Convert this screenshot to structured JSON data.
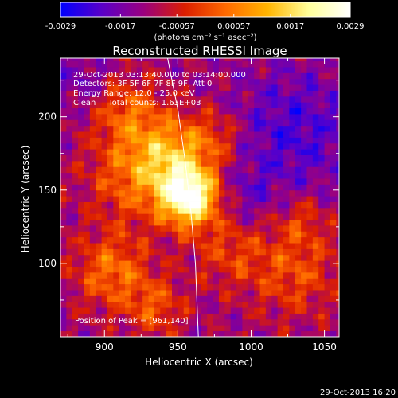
{
  "chart_data": {
    "type": "heatmap",
    "title": "Reconstructed RHESSI Image",
    "xlabel": "Heliocentric X (arcsec)",
    "ylabel": "Heliocentric Y (arcsec)",
    "xlim": [
      870,
      1060
    ],
    "ylim": [
      50,
      240
    ],
    "x_ticks": [
      900,
      950,
      1000,
      1050
    ],
    "y_ticks": [
      100,
      150,
      200
    ],
    "x_tick_labels": [
      "900",
      "950",
      "1000",
      "1050"
    ],
    "y_tick_labels": [
      "100",
      "150",
      "200"
    ],
    "colorbar": {
      "min": -0.0029,
      "max": 0.0029,
      "tick_values": [
        -0.0029,
        -0.0017,
        -0.00057,
        0.00057,
        0.0017,
        0.0029
      ],
      "tick_labels": [
        "-0.0029",
        "-0.0017",
        "-0.00057",
        "0.00057",
        "0.0017",
        "0.0029"
      ],
      "label": "(photons cm⁻² s⁻¹ asec⁻²)",
      "colors": [
        "#0000ff",
        "#5a00c8",
        "#9a0080",
        "#dc1e00",
        "#ff6a00",
        "#ffb400",
        "#ffff9a",
        "#ffffff"
      ],
      "position": "top"
    },
    "annotations": [
      "29-Oct-2013 03:13:40.000 to 03:14:00.000",
      "Detectors: 3F 5F 6F 7F 8F 9F, Att 0",
      "Energy Range: 12.0 - 25.0 keV",
      "Clean     Total counts: 1.63E+03"
    ],
    "peak_label": "Position of Peak = [961,140]",
    "peak": [
      961,
      140
    ],
    "limb": [
      [
        943,
        240
      ],
      [
        950,
        205
      ],
      [
        955,
        170
      ],
      [
        959,
        135
      ],
      [
        962,
        100
      ],
      [
        964,
        50
      ]
    ],
    "field": {
      "background": -0.0012,
      "sources": [
        {
          "x": 958,
          "y": 146,
          "sigma": 14,
          "amp": 0.004
        },
        {
          "x": 945,
          "y": 176,
          "sigma": 18,
          "amp": 0.0018
        },
        {
          "x": 920,
          "y": 160,
          "sigma": 22,
          "amp": 0.0015
        },
        {
          "x": 915,
          "y": 205,
          "sigma": 16,
          "amp": 0.0013
        },
        {
          "x": 905,
          "y": 95,
          "sigma": 18,
          "amp": 0.0016
        },
        {
          "x": 985,
          "y": 110,
          "sigma": 18,
          "amp": 0.001
        },
        {
          "x": 1030,
          "y": 95,
          "sigma": 22,
          "amp": 0.0012
        },
        {
          "x": 1035,
          "y": 130,
          "sigma": 12,
          "amp": 0.0008
        },
        {
          "x": 935,
          "y": 70,
          "sigma": 14,
          "amp": 0.0012
        },
        {
          "x": 975,
          "y": 185,
          "sigma": 14,
          "amp": 0.001
        }
      ],
      "cold": [
        {
          "x": 1030,
          "y": 190,
          "sigma": 30,
          "amp": -0.001
        },
        {
          "x": 995,
          "y": 145,
          "sigma": 16,
          "amp": -0.0006
        },
        {
          "x": 885,
          "y": 225,
          "sigma": 14,
          "amp": -0.0006
        }
      ]
    }
  },
  "footer": {
    "timestamp": "29-Oct-2013 16:20"
  }
}
